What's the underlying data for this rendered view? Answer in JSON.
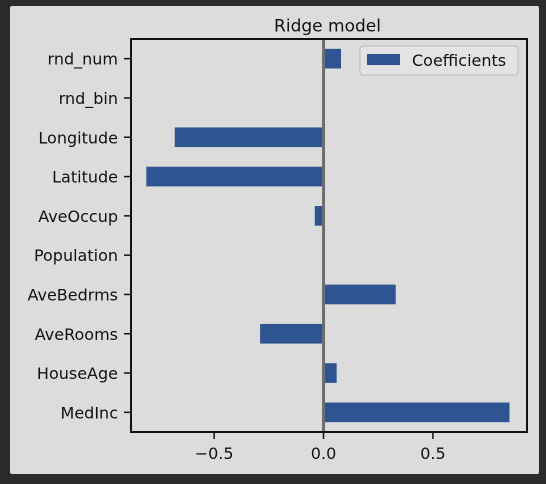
{
  "chart_data": {
    "type": "bar",
    "orientation": "horizontal",
    "title": "Ridge model",
    "xlabel": "",
    "ylabel": "",
    "categories": [
      "MedInc",
      "HouseAge",
      "AveRooms",
      "AveBedrms",
      "Population",
      "AveOccup",
      "Latitude",
      "Longitude",
      "rnd_bin",
      "rnd_num"
    ],
    "series": [
      {
        "name": "Coefficients",
        "values": [
          0.85,
          0.06,
          -0.29,
          0.33,
          0.0,
          -0.04,
          -0.81,
          -0.68,
          0.0,
          0.08
        ]
      }
    ],
    "xlim": [
      -0.88,
      0.93
    ],
    "xticks": [
      -0.5,
      0.0,
      0.5
    ],
    "xtick_labels": [
      "−0.5",
      "0.0",
      "0.5"
    ],
    "zero_line": true,
    "grid": false,
    "legend_position": "top-right",
    "colors": {
      "bar": "#2e5591",
      "zero_line": "#6e6e6e",
      "background": "#dcdcdc",
      "frame": "#111111"
    }
  }
}
